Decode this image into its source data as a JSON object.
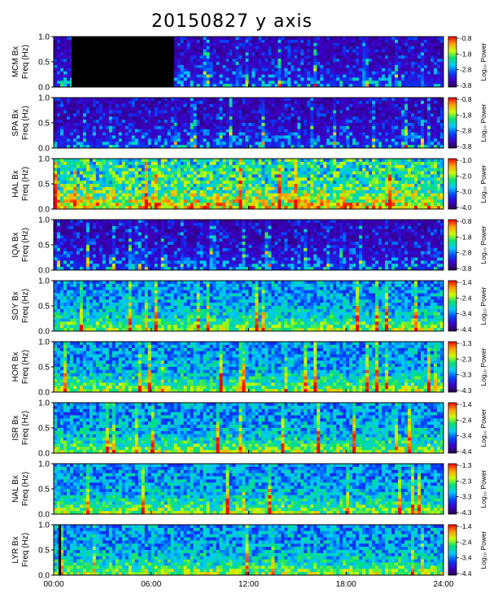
{
  "page_title": "20150827 y axis",
  "chart_data": {
    "type": "heatmap",
    "title": "20150827 y axis",
    "x_ticks": [
      "00:00",
      "06:00",
      "12:00",
      "18:00",
      "24:00"
    ],
    "x_range_hours": [
      0,
      24
    ],
    "y_ticks": [
      "0.0",
      "0.5",
      "1.0"
    ],
    "y_range_hz": [
      0,
      1.0
    ],
    "colorbar_label": "Log₁₀ Power",
    "colormap": [
      "#2a0050",
      "#3a00c8",
      "#0044ff",
      "#00c8ff",
      "#00e07a",
      "#c8ff00",
      "#ffa000",
      "#ff0000"
    ],
    "panels": [
      {
        "ylabel_station": "MCM Bx",
        "ylabel_axis": "Freq (Hz)",
        "cbar_ticks": [
          "-0.8",
          "-1.8",
          "-2.8",
          "-3.8"
        ],
        "activity": "low",
        "data_gap_hours": [
          1.1,
          7.4
        ]
      },
      {
        "ylabel_station": "SPA Bx",
        "ylabel_axis": "Freq (Hz)",
        "cbar_ticks": [
          "-0.8",
          "-1.8",
          "-2.8",
          "-3.8"
        ],
        "activity": "low"
      },
      {
        "ylabel_station": "HAL Bx",
        "ylabel_axis": "Freq (Hz)",
        "cbar_ticks": [
          "-1.0",
          "-2.0",
          "-3.0",
          "-4.0"
        ],
        "activity": "high"
      },
      {
        "ylabel_station": "IQA Bx",
        "ylabel_axis": "Freq (Hz)",
        "cbar_ticks": [
          "-0.8",
          "-1.8",
          "-2.8",
          "-3.8"
        ],
        "activity": "low"
      },
      {
        "ylabel_station": "SOY Bx",
        "ylabel_axis": "Freq (Hz)",
        "cbar_ticks": [
          "-1.4",
          "-2.4",
          "-3.4",
          "-4.4"
        ],
        "activity": "medium"
      },
      {
        "ylabel_station": "HOR Bx",
        "ylabel_axis": "Freq (Hz)",
        "cbar_ticks": [
          "-1.3",
          "-2.3",
          "-3.3",
          "-4.3"
        ],
        "activity": "medium"
      },
      {
        "ylabel_station": "ISR Bx",
        "ylabel_axis": "Freq (Hz)",
        "cbar_ticks": [
          "-1.4",
          "-2.4",
          "-3.4",
          "-4.4"
        ],
        "activity": "medium"
      },
      {
        "ylabel_station": "NAL Bx",
        "ylabel_axis": "Freq (Hz)",
        "cbar_ticks": [
          "-1.3",
          "-2.3",
          "-3.3",
          "-4.3"
        ],
        "activity": "medium"
      },
      {
        "ylabel_station": "LYR Bx",
        "ylabel_axis": "Freq (Hz)",
        "cbar_ticks": [
          "-1.4",
          "-2.4",
          "-3.4",
          "-4.4"
        ],
        "activity": "medium",
        "data_gap_hours": [
          0.3,
          0.45
        ]
      }
    ]
  }
}
